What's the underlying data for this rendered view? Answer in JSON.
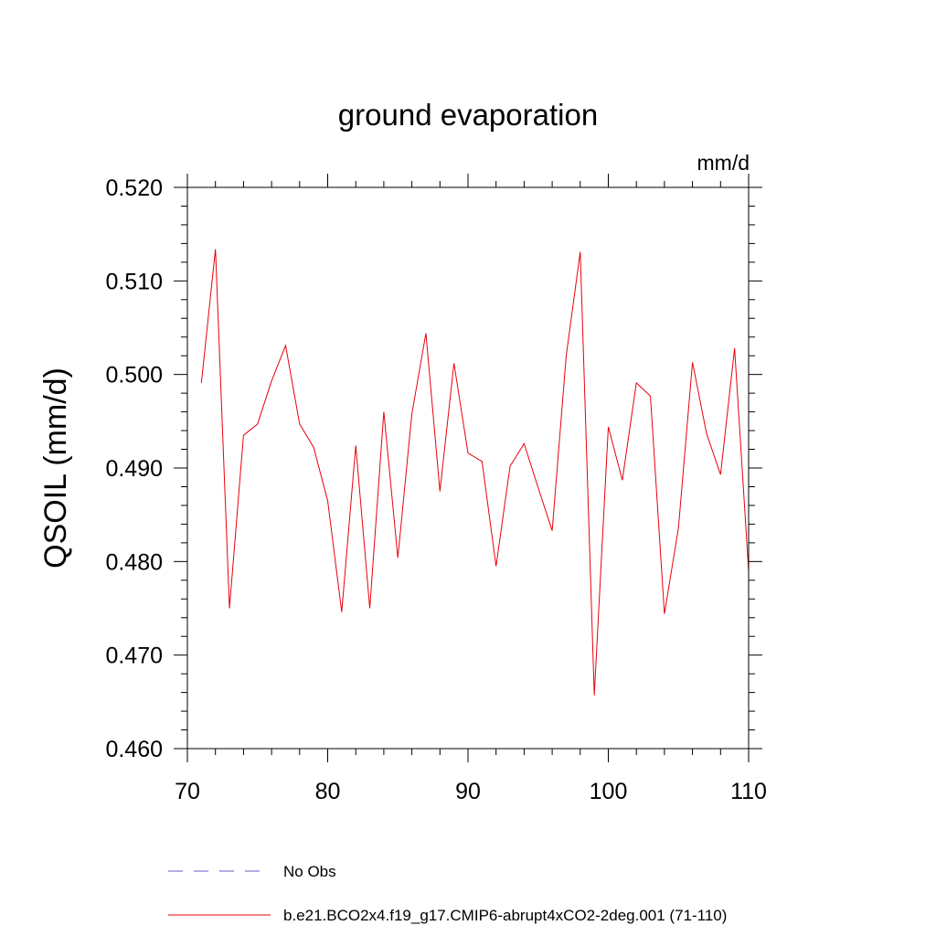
{
  "chart_data": {
    "type": "line",
    "title": "ground evaporation",
    "units": "mm/d",
    "xlabel": "",
    "ylabel": "QSOIL  (mm/d)",
    "xlim": [
      70,
      110
    ],
    "ylim": [
      0.46,
      0.52
    ],
    "x_ticks": [
      70,
      80,
      90,
      100,
      110
    ],
    "x_tick_labels": [
      "70",
      "80",
      "90",
      "100",
      "110"
    ],
    "y_ticks": [
      0.46,
      0.47,
      0.48,
      0.49,
      0.5,
      0.51,
      0.52
    ],
    "y_tick_labels": [
      "0.460",
      "0.470",
      "0.480",
      "0.490",
      "0.500",
      "0.510",
      "0.520"
    ],
    "grid": false,
    "legend_position": "bottom",
    "series": [
      {
        "name": "No Obs",
        "color": "#6a5acd",
        "style": "dashed",
        "x": [],
        "values": []
      },
      {
        "name": "b.e21.BCO2x4.f19_g17.CMIP6-abrupt4xCO2-2deg.001 (71-110)",
        "color": "#e8000b",
        "style": "solid",
        "x": [
          71,
          72,
          73,
          74,
          75,
          76,
          77,
          78,
          79,
          80,
          81,
          82,
          83,
          84,
          85,
          86,
          87,
          88,
          89,
          90,
          91,
          92,
          93,
          94,
          95,
          96,
          97,
          98,
          99,
          100,
          101,
          102,
          103,
          104,
          105,
          106,
          107,
          108,
          109,
          110
        ],
        "values": [
          0.4991,
          0.5134,
          0.475,
          0.4935,
          0.4947,
          0.4993,
          0.5031,
          0.4947,
          0.4922,
          0.4865,
          0.4746,
          0.4924,
          0.475,
          0.496,
          0.4804,
          0.4958,
          0.5044,
          0.4875,
          0.5012,
          0.4916,
          0.4907,
          0.4795,
          0.4902,
          0.4926,
          0.4879,
          0.4833,
          0.502,
          0.5131,
          0.4657,
          0.4944,
          0.4887,
          0.4991,
          0.4977,
          0.4744,
          0.4836,
          0.5013,
          0.4937,
          0.4893,
          0.5028,
          0.479
        ]
      }
    ]
  }
}
